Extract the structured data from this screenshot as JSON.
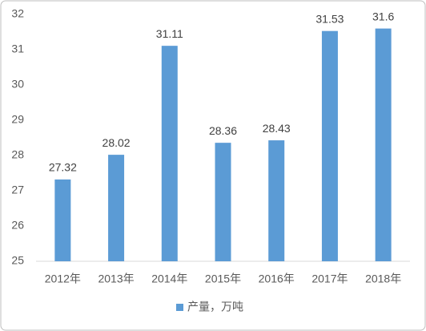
{
  "chart_data": {
    "type": "bar",
    "categories": [
      "2012年",
      "2013年",
      "2014年",
      "2015年",
      "2016年",
      "2017年",
      "2018年"
    ],
    "series": [
      {
        "name": "产量，万吨",
        "color": "#5b9bd5",
        "values": [
          27.32,
          28.02,
          31.11,
          28.36,
          28.43,
          31.53,
          31.6
        ]
      }
    ],
    "ylim": [
      25,
      32
    ],
    "yticks": [
      25,
      26,
      27,
      28,
      29,
      30,
      31,
      32
    ],
    "grid": false,
    "legend": "bottom"
  }
}
